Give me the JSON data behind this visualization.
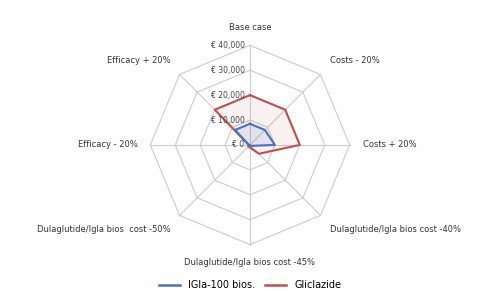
{
  "categories": [
    "Base case",
    "Costs - 20%",
    "Costs + 20%",
    "Dulaglutide/Igla bios cost -40%",
    "Dulaglutide/Igla bios cost -45%",
    "Dulaglutide/Igla bios  cost -50%",
    "Efficacy - 20%",
    "Efficacy + 20%"
  ],
  "igla_values": [
    8500,
    8500,
    10000,
    500,
    0,
    0,
    500,
    8500
  ],
  "gliclazide_values": [
    20000,
    20000,
    20000,
    5000,
    1000,
    1000,
    500,
    20000
  ],
  "igla_color": "#4472C4",
  "gliclazide_color": "#C0504D",
  "grid_color": "#CCCCCC",
  "spoke_color": "#CCCCCC",
  "max_val": 40000,
  "tick_levels": [
    0.25,
    0.5,
    0.75,
    1.0
  ],
  "tick_labels": [
    "€ 10,000",
    "€ 20,000",
    "€ 30,000",
    "€ 40,000"
  ],
  "center_label": "€ 0",
  "legend_igla": "IGla-100 bios.",
  "legend_gliclazide": "Gliclazide",
  "background_color": "#ffffff",
  "label_fontsize": 6.0,
  "tick_fontsize": 5.5
}
